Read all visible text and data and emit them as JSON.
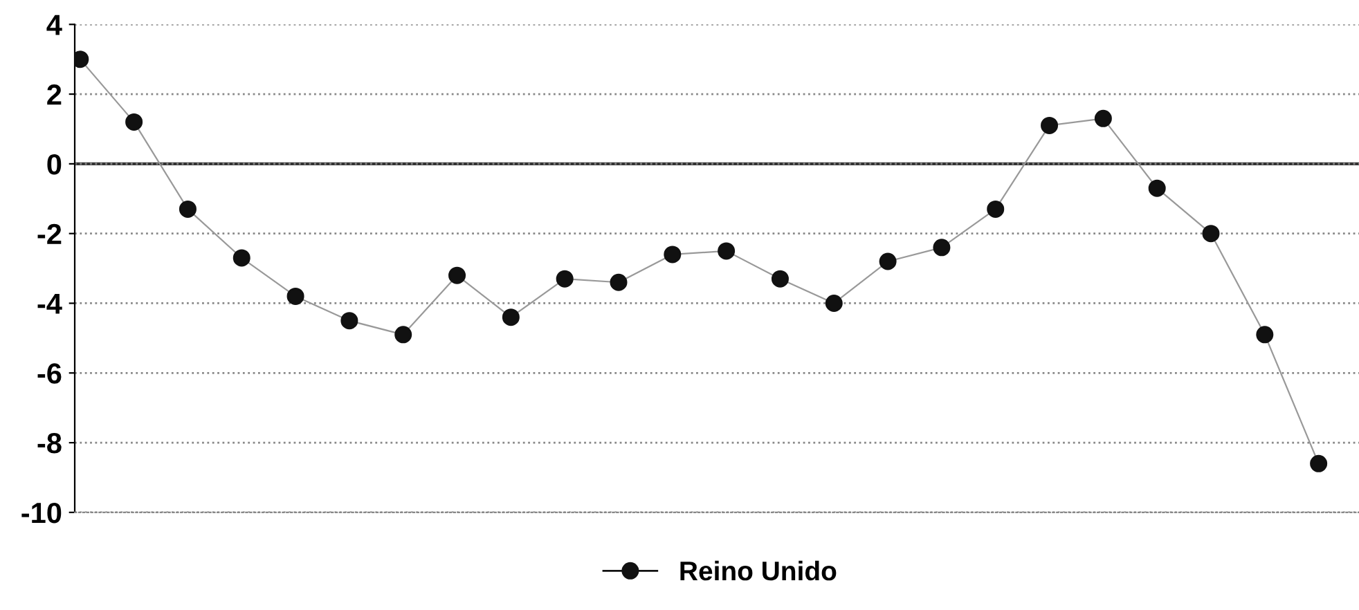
{
  "chart_data": {
    "type": "line",
    "categories": [
      null,
      null,
      null,
      null,
      null,
      null,
      null,
      null,
      null,
      null,
      null,
      null,
      null,
      null,
      null,
      null,
      null,
      null,
      null,
      null,
      null,
      null,
      null,
      null
    ],
    "series": [
      {
        "name": "Reino Unido",
        "color": "#111111",
        "values": [
          3.0,
          1.2,
          -1.3,
          -2.7,
          -3.8,
          -4.5,
          -4.9,
          -3.2,
          -4.4,
          -3.3,
          -3.4,
          -2.6,
          -2.5,
          -3.3,
          -4.0,
          -2.8,
          -2.4,
          -1.3,
          1.1,
          1.3,
          -0.7,
          -2.0,
          -4.9,
          -8.6
        ]
      }
    ],
    "ylim": [
      -10,
      4
    ],
    "yticks": [
      -10,
      -8,
      -6,
      -4,
      -2,
      0,
      2,
      4
    ],
    "grid": "y",
    "legend": "bottom",
    "marker": "circle",
    "line_style": "solid",
    "tick_labels": "y",
    "ref_lines": [
      {
        "axis": "y",
        "value": 0,
        "color": "#333333"
      }
    ]
  }
}
